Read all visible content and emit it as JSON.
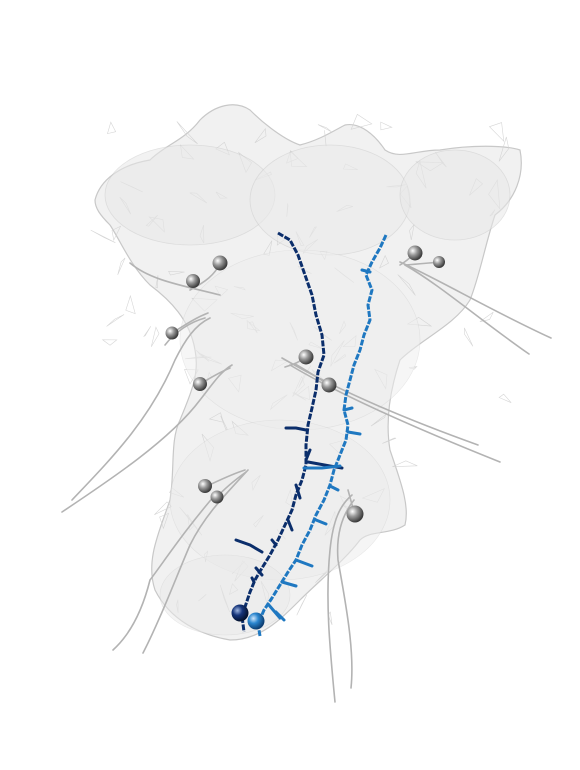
{
  "colors": {
    "background": "#ffffff",
    "mesh_fill": "#ececec",
    "mesh_stroke": "#bdbdbd",
    "projection_lines": "#b0b0b0",
    "node_sphere": "#8a8a8a",
    "neuron_dark": "#0b2e6b",
    "neuron_light": "#1f78c1"
  },
  "scene": {
    "mesh_label": "brain-region-mesh",
    "neurons": [
      {
        "name": "neuron-dark",
        "color_key": "neuron_dark"
      },
      {
        "name": "neuron-light",
        "color_key": "neuron_light"
      }
    ],
    "grey_node_count": 11
  }
}
